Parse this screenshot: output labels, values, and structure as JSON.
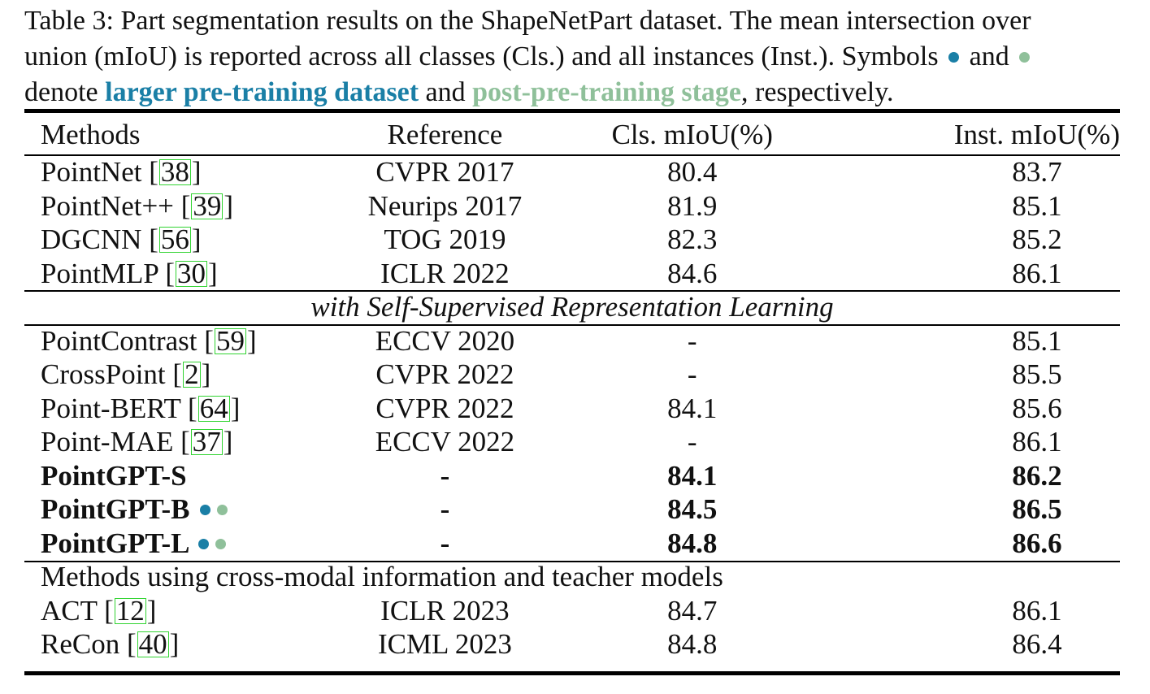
{
  "caption": {
    "line1": "Table 3: Part segmentation results on the ShapeNetPart dataset. The mean intersection over",
    "line2_a": "union (mIoU) is reported across all classes (Cls.) and all instances (Inst.). Symbols",
    "line2_and": "and",
    "line3_a": "denote",
    "line3_blue": "larger pre-training dataset",
    "line3_and": "and",
    "line3_green": "post-pre-training stage",
    "line3_end": ", respectively."
  },
  "colors": {
    "blue_marker": "#1a7fa6",
    "green_marker": "#8fc09a",
    "cite_box": "#32d432"
  },
  "headers": {
    "method": "Methods",
    "reference": "Reference",
    "cls": "Cls. mIoU(%)",
    "inst": "Inst. mIoU(%)"
  },
  "supervised": [
    {
      "name": "PointNet",
      "cite": "38",
      "ref": "CVPR 2017",
      "cls": "80.4",
      "inst": "83.7"
    },
    {
      "name": "PointNet++",
      "cite": "39",
      "ref": "Neurips 2017",
      "cls": "81.9",
      "inst": "85.1"
    },
    {
      "name": "DGCNN",
      "cite": "56",
      "ref": "TOG 2019",
      "cls": "82.3",
      "inst": "85.2"
    },
    {
      "name": "PointMLP",
      "cite": "30",
      "ref": "ICLR 2022",
      "cls": "84.6",
      "inst": "86.1"
    }
  ],
  "section_ssl": "with Self-Supervised Representation Learning",
  "ssl": [
    {
      "name": "PointContrast",
      "cite": "59",
      "ref": "ECCV 2020",
      "cls": "-",
      "inst": "85.1"
    },
    {
      "name": "CrossPoint",
      "cite": "2",
      "ref": "CVPR 2022",
      "cls": "-",
      "inst": "85.5"
    },
    {
      "name": "Point-BERT",
      "cite": "64",
      "ref": "CVPR 2022",
      "cls": "84.1",
      "inst": "85.6"
    },
    {
      "name": "Point-MAE",
      "cite": "37",
      "ref": "ECCV 2022",
      "cls": "-",
      "inst": "86.1"
    }
  ],
  "ours": [
    {
      "name": "PointGPT-S",
      "ref": "-",
      "cls": "84.1",
      "inst": "86.2"
    },
    {
      "name": "PointGPT-B",
      "ref": "-",
      "cls": "84.5",
      "inst": "86.5"
    },
    {
      "name": "PointGPT-L",
      "ref": "-",
      "cls": "84.8",
      "inst": "86.6"
    }
  ],
  "section_cross": "Methods using cross-modal information and teacher models",
  "cross": [
    {
      "name": "ACT",
      "cite": "12",
      "ref": "ICLR 2023",
      "cls": "84.7",
      "inst": "86.1"
    },
    {
      "name": "ReCon",
      "cite": "40",
      "ref": "ICML 2023",
      "cls": "84.8",
      "inst": "86.4"
    }
  ]
}
